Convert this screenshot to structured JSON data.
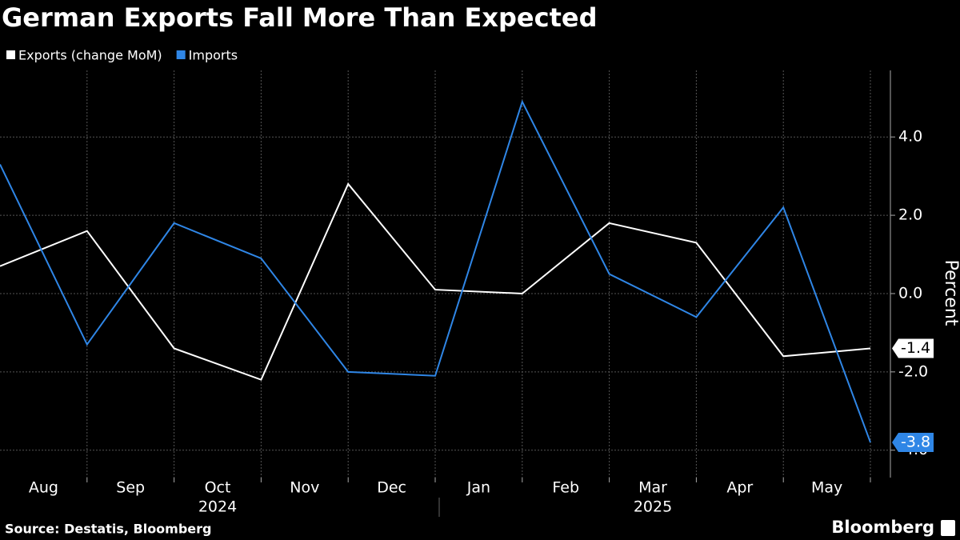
{
  "chart_data": {
    "type": "line",
    "title": "German Exports Fall More Than Expected",
    "x": [
      "2024-07",
      "2024-08",
      "2024-09",
      "2024-10",
      "2024-11",
      "2024-12",
      "2025-01",
      "2025-02",
      "2025-03",
      "2025-04",
      "2025-05"
    ],
    "month_labels": [
      "Aug",
      "Sep",
      "Oct",
      "Nov",
      "Dec",
      "Jan",
      "Feb",
      "Mar",
      "Apr",
      "May"
    ],
    "year_labels": [
      "2024",
      "2025"
    ],
    "series": [
      {
        "name": "Exports (change MoM)",
        "color": "#ffffff",
        "values": [
          0.7,
          1.6,
          -1.4,
          -2.2,
          2.8,
          0.1,
          0.0,
          1.8,
          1.3,
          -1.6,
          -1.4
        ]
      },
      {
        "name": "Imports",
        "color": "#2f86e6",
        "values": [
          3.3,
          -1.3,
          1.8,
          0.9,
          -2.0,
          -2.1,
          4.9,
          0.5,
          -0.6,
          2.2,
          -3.8
        ]
      }
    ],
    "ylabel": "Percent",
    "ylim": [
      -4.7,
      5.7
    ],
    "yticks": [
      {
        "value": -4,
        "label": "-4.0"
      },
      {
        "value": -2,
        "label": "-2.0"
      },
      {
        "value": 0,
        "label": "0.0"
      },
      {
        "value": 2,
        "label": "2.0"
      },
      {
        "value": 4,
        "label": "4.0"
      }
    ],
    "grid": true,
    "source": "Source: Destatis, Bloomberg",
    "brand": "Bloomberg"
  }
}
